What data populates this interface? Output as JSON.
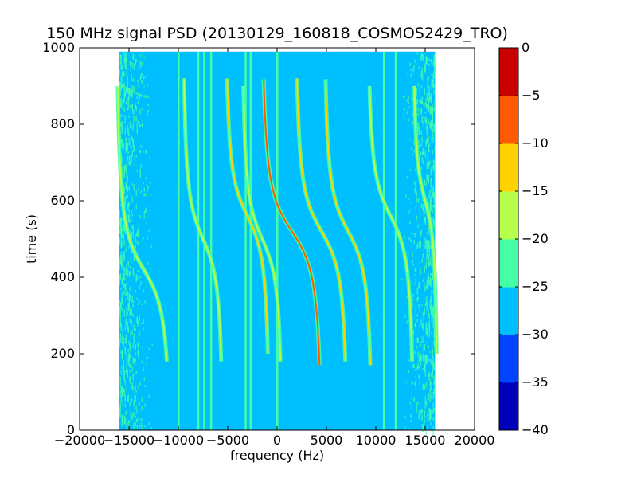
{
  "chart_data": {
    "type": "heatmap",
    "title": "150 MHz signal PSD (20130129_160818_COSMOS2429_TRO)",
    "xlabel": "frequency (Hz)",
    "ylabel": "time (s)",
    "xlim": [
      -20000,
      20000
    ],
    "ylim": [
      0,
      1000
    ],
    "x_ticks": [
      -20000,
      -15000,
      -10000,
      -5000,
      0,
      5000,
      10000,
      15000,
      20000
    ],
    "x_tick_labels": [
      "−20000",
      "−15000",
      "−10000",
      "−5000",
      "0",
      "5000",
      "10000",
      "15000",
      "20000"
    ],
    "y_ticks": [
      0,
      200,
      400,
      600,
      800,
      1000
    ],
    "y_tick_labels": [
      "0",
      "200",
      "400",
      "600",
      "800",
      "1000"
    ],
    "data_extent": {
      "freq_min": -16000,
      "freq_max": 16000,
      "time_min": 0,
      "time_max": 990
    },
    "background_level": [
      -30,
      -25
    ],
    "colorbar": {
      "levels": [
        -40,
        -35,
        -30,
        -25,
        -20,
        -15,
        -10,
        -5,
        0
      ],
      "tick_labels": [
        "−40",
        "−35",
        "−30",
        "−25",
        "−20",
        "−15",
        "−10",
        "−5",
        "0"
      ],
      "colors": [
        "#0000bb",
        "#0044ff",
        "#00bfff",
        "#44ffa6",
        "#b6ff4a",
        "#ffd200",
        "#ff5a00",
        "#c80000"
      ]
    },
    "vertical_lines": [
      {
        "freq": -10000,
        "level": "-25..-20"
      },
      {
        "freq": -8000,
        "level": "-25..-20"
      },
      {
        "freq": -7400,
        "level": "-25..-20"
      },
      {
        "freq": -6700,
        "level": "-25..-20"
      },
      {
        "freq": -3200,
        "level": "-25..-20"
      },
      {
        "freq": -2700,
        "level": "-25..-20"
      },
      {
        "freq": 0,
        "level": "-25..-20"
      },
      {
        "freq": 10800,
        "level": "-25..-20"
      },
      {
        "freq": 12000,
        "level": "-25..-20"
      }
    ],
    "curves": [
      {
        "center_freq": -13500,
        "center_time": 420,
        "freq_half_range": 2700,
        "time_range": [
          180,
          900
        ],
        "level": "-20..-15"
      },
      {
        "center_freq": -7500,
        "center_time": 500,
        "freq_half_range": 2000,
        "time_range": [
          180,
          920
        ],
        "level": "-20..-15"
      },
      {
        "center_freq": -3000,
        "center_time": 560,
        "freq_half_range": 2200,
        "time_range": [
          200,
          920
        ],
        "level": "-15..-10"
      },
      {
        "center_freq": -1500,
        "center_time": 500,
        "freq_half_range": 2000,
        "time_range": [
          180,
          900
        ],
        "level": "-20..-15"
      },
      {
        "center_freq": 1500,
        "center_time": 520,
        "freq_half_range": 3000,
        "time_range": [
          170,
          920
        ],
        "level": "-10..-5"
      },
      {
        "center_freq": 4500,
        "center_time": 520,
        "freq_half_range": 2600,
        "time_range": [
          180,
          920
        ],
        "level": "-15..-10"
      },
      {
        "center_freq": 7200,
        "center_time": 520,
        "freq_half_range": 2400,
        "time_range": [
          170,
          920
        ],
        "level": "-15..-10"
      },
      {
        "center_freq": 11500,
        "center_time": 560,
        "freq_half_range": 2300,
        "time_range": [
          180,
          900
        ],
        "level": "-20..-15"
      },
      {
        "center_freq": 15000,
        "center_time": 600,
        "freq_half_range": 1200,
        "time_range": [
          200,
          900
        ],
        "level": "-20..-15"
      }
    ]
  }
}
